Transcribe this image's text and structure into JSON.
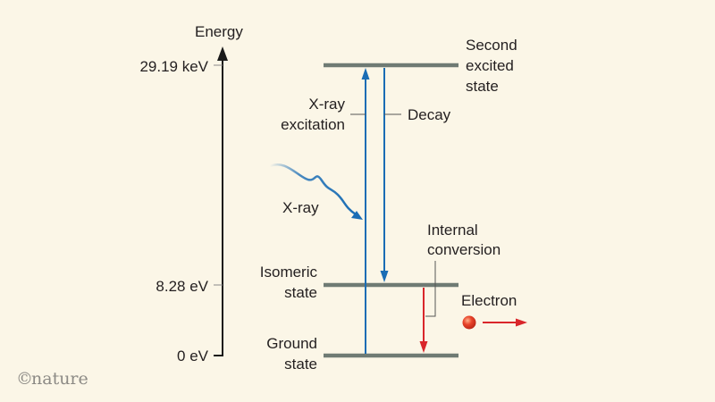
{
  "colors": {
    "background": "#fbf6e7",
    "text": "#231f20",
    "level_line": "#6f7b74",
    "axis": "#1a1a1a",
    "excitation_blue": "#1a6db5",
    "conversion_red": "#d9262b",
    "electron": "#e8432a",
    "logo_gray": "#8c8a85"
  },
  "axis": {
    "title": "Energy",
    "ticks": [
      "29.19 keV",
      "8.28 eV",
      "0 eV"
    ]
  },
  "levels": {
    "second_excited": [
      "Second",
      "excited",
      "state"
    ],
    "isomeric": [
      "Isomeric",
      "state"
    ],
    "ground": [
      "Ground",
      "state"
    ]
  },
  "transitions": {
    "xray_excitation": [
      "X-ray",
      "excitation"
    ],
    "decay": "Decay",
    "xray": "X-ray",
    "internal_conversion": [
      "Internal",
      "conversion"
    ],
    "electron": "Electron"
  },
  "logo": {
    "symbol": "©",
    "text": "nature"
  }
}
